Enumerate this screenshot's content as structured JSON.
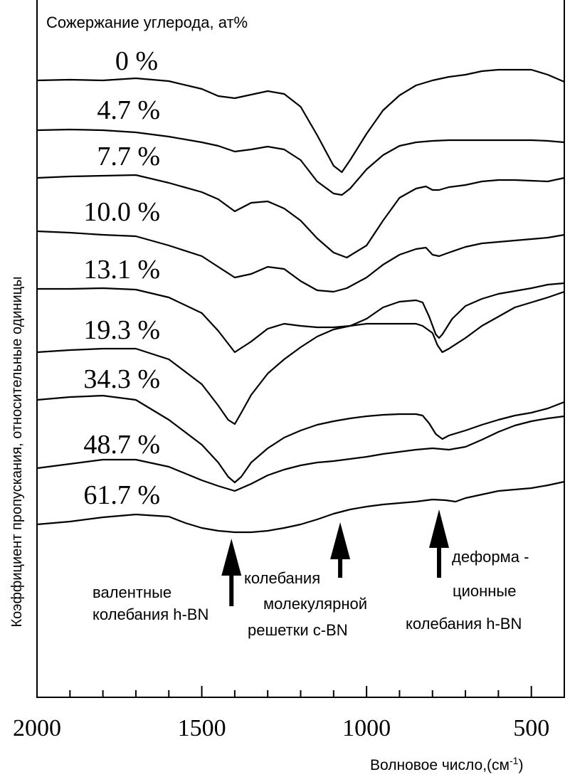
{
  "chart_data": {
    "type": "line",
    "title": "Сожержание углерода, ат%",
    "xlabel": "Волновое число,(см",
    "xlabel_sup": "-1",
    "xlabel_close": ")",
    "ylabel": "Коэффициент пропускания, относительные одиницы",
    "xlim": [
      2000,
      400
    ],
    "x_reversed": true,
    "xticks_major": [
      2000,
      1500,
      1000,
      500
    ],
    "xtick_labels": [
      "2000",
      "1500",
      "1000",
      "500"
    ],
    "xticks_minor_step": 100,
    "grid": false,
    "series": [
      {
        "name": "0 %",
        "points": [
          [
            2000,
            113
          ],
          [
            1900,
            112
          ],
          [
            1800,
            113
          ],
          [
            1700,
            110
          ],
          [
            1600,
            114
          ],
          [
            1500,
            125
          ],
          [
            1450,
            135
          ],
          [
            1400,
            138
          ],
          [
            1350,
            133
          ],
          [
            1300,
            128
          ],
          [
            1250,
            132
          ],
          [
            1200,
            150
          ],
          [
            1150,
            190
          ],
          [
            1100,
            233
          ],
          [
            1075,
            242
          ],
          [
            1050,
            225
          ],
          [
            1000,
            188
          ],
          [
            950,
            155
          ],
          [
            900,
            134
          ],
          [
            850,
            120
          ],
          [
            800,
            113
          ],
          [
            750,
            108
          ],
          [
            700,
            105
          ],
          [
            650,
            100
          ],
          [
            600,
            98
          ],
          [
            550,
            98
          ],
          [
            500,
            98
          ],
          [
            450,
            105
          ],
          [
            400,
            115
          ]
        ]
      },
      {
        "name": "4.7 %",
        "points": [
          [
            2000,
            183
          ],
          [
            1900,
            182
          ],
          [
            1800,
            183
          ],
          [
            1700,
            186
          ],
          [
            1600,
            192
          ],
          [
            1500,
            200
          ],
          [
            1450,
            205
          ],
          [
            1400,
            213
          ],
          [
            1350,
            210
          ],
          [
            1300,
            206
          ],
          [
            1250,
            210
          ],
          [
            1200,
            225
          ],
          [
            1150,
            255
          ],
          [
            1100,
            272
          ],
          [
            1075,
            274
          ],
          [
            1050,
            265
          ],
          [
            1000,
            238
          ],
          [
            950,
            218
          ],
          [
            900,
            205
          ],
          [
            850,
            200
          ],
          [
            800,
            198
          ],
          [
            750,
            197
          ],
          [
            700,
            197
          ],
          [
            650,
            197
          ],
          [
            600,
            197
          ],
          [
            550,
            197
          ],
          [
            500,
            197
          ],
          [
            450,
            198
          ],
          [
            400,
            200
          ]
        ]
      },
      {
        "name": "7.7 %",
        "points": [
          [
            2000,
            250
          ],
          [
            1900,
            248
          ],
          [
            1800,
            247
          ],
          [
            1700,
            246
          ],
          [
            1600,
            257
          ],
          [
            1500,
            270
          ],
          [
            1450,
            280
          ],
          [
            1400,
            297
          ],
          [
            1350,
            285
          ],
          [
            1300,
            283
          ],
          [
            1250,
            293
          ],
          [
            1200,
            310
          ],
          [
            1150,
            335
          ],
          [
            1100,
            355
          ],
          [
            1060,
            362
          ],
          [
            1000,
            345
          ],
          [
            950,
            310
          ],
          [
            900,
            278
          ],
          [
            850,
            265
          ],
          [
            820,
            262
          ],
          [
            800,
            267
          ],
          [
            780,
            267
          ],
          [
            750,
            263
          ],
          [
            700,
            260
          ],
          [
            650,
            255
          ],
          [
            600,
            253
          ],
          [
            550,
            253
          ],
          [
            500,
            254
          ],
          [
            450,
            255
          ],
          [
            400,
            250
          ]
        ]
      },
      {
        "name": "10.0 %",
        "points": [
          [
            2000,
            325
          ],
          [
            1900,
            327
          ],
          [
            1800,
            330
          ],
          [
            1700,
            332
          ],
          [
            1600,
            345
          ],
          [
            1500,
            360
          ],
          [
            1450,
            375
          ],
          [
            1400,
            390
          ],
          [
            1350,
            385
          ],
          [
            1300,
            375
          ],
          [
            1250,
            378
          ],
          [
            1200,
            395
          ],
          [
            1150,
            408
          ],
          [
            1100,
            410
          ],
          [
            1060,
            405
          ],
          [
            1000,
            390
          ],
          [
            950,
            372
          ],
          [
            900,
            358
          ],
          [
            850,
            350
          ],
          [
            820,
            348
          ],
          [
            800,
            358
          ],
          [
            780,
            360
          ],
          [
            750,
            355
          ],
          [
            700,
            347
          ],
          [
            650,
            342
          ],
          [
            600,
            340
          ],
          [
            550,
            338
          ],
          [
            500,
            336
          ],
          [
            450,
            334
          ],
          [
            400,
            330
          ]
        ]
      },
      {
        "name": "13.1 %",
        "points": [
          [
            2000,
            406
          ],
          [
            1900,
            406
          ],
          [
            1800,
            405
          ],
          [
            1700,
            407
          ],
          [
            1600,
            418
          ],
          [
            1500,
            440
          ],
          [
            1450,
            465
          ],
          [
            1400,
            495
          ],
          [
            1350,
            480
          ],
          [
            1300,
            462
          ],
          [
            1250,
            455
          ],
          [
            1200,
            458
          ],
          [
            1150,
            460
          ],
          [
            1100,
            460
          ],
          [
            1050,
            458
          ],
          [
            1000,
            448
          ],
          [
            950,
            432
          ],
          [
            900,
            424
          ],
          [
            850,
            422
          ],
          [
            830,
            425
          ],
          [
            810,
            445
          ],
          [
            790,
            470
          ],
          [
            780,
            475
          ],
          [
            770,
            470
          ],
          [
            740,
            448
          ],
          [
            700,
            430
          ],
          [
            650,
            420
          ],
          [
            600,
            413
          ],
          [
            550,
            409
          ],
          [
            500,
            405
          ],
          [
            450,
            400
          ],
          [
            400,
            398
          ]
        ]
      },
      {
        "name": "19.3 %",
        "points": [
          [
            2000,
            495
          ],
          [
            1900,
            492
          ],
          [
            1800,
            490
          ],
          [
            1700,
            490
          ],
          [
            1600,
            505
          ],
          [
            1500,
            540
          ],
          [
            1450,
            570
          ],
          [
            1420,
            590
          ],
          [
            1400,
            596
          ],
          [
            1380,
            580
          ],
          [
            1350,
            555
          ],
          [
            1300,
            525
          ],
          [
            1250,
            505
          ],
          [
            1200,
            488
          ],
          [
            1150,
            473
          ],
          [
            1100,
            463
          ],
          [
            1050,
            458
          ],
          [
            1000,
            455
          ],
          [
            950,
            455
          ],
          [
            900,
            455
          ],
          [
            850,
            455
          ],
          [
            830,
            458
          ],
          [
            800,
            468
          ],
          [
            785,
            485
          ],
          [
            770,
            495
          ],
          [
            750,
            490
          ],
          [
            700,
            475
          ],
          [
            650,
            458
          ],
          [
            600,
            445
          ],
          [
            550,
            432
          ],
          [
            500,
            425
          ],
          [
            450,
            418
          ],
          [
            400,
            410
          ]
        ]
      },
      {
        "name": "34.3 %",
        "points": [
          [
            2000,
            562
          ],
          [
            1900,
            558
          ],
          [
            1800,
            556
          ],
          [
            1700,
            562
          ],
          [
            1600,
            590
          ],
          [
            1500,
            625
          ],
          [
            1450,
            650
          ],
          [
            1420,
            670
          ],
          [
            1400,
            678
          ],
          [
            1380,
            670
          ],
          [
            1350,
            650
          ],
          [
            1300,
            630
          ],
          [
            1250,
            615
          ],
          [
            1200,
            605
          ],
          [
            1150,
            597
          ],
          [
            1100,
            592
          ],
          [
            1050,
            588
          ],
          [
            1000,
            585
          ],
          [
            950,
            583
          ],
          [
            900,
            582
          ],
          [
            850,
            582
          ],
          [
            830,
            584
          ],
          [
            810,
            595
          ],
          [
            790,
            610
          ],
          [
            770,
            617
          ],
          [
            750,
            612
          ],
          [
            700,
            605
          ],
          [
            650,
            597
          ],
          [
            600,
            590
          ],
          [
            550,
            584
          ],
          [
            500,
            580
          ],
          [
            450,
            574
          ],
          [
            400,
            565
          ]
        ]
      },
      {
        "name": "48.7 %",
        "points": [
          [
            2000,
            658
          ],
          [
            1900,
            652
          ],
          [
            1800,
            646
          ],
          [
            1700,
            646
          ],
          [
            1600,
            656
          ],
          [
            1500,
            675
          ],
          [
            1450,
            683
          ],
          [
            1400,
            690
          ],
          [
            1350,
            680
          ],
          [
            1300,
            668
          ],
          [
            1250,
            660
          ],
          [
            1200,
            654
          ],
          [
            1150,
            650
          ],
          [
            1100,
            648
          ],
          [
            1050,
            645
          ],
          [
            1000,
            642
          ],
          [
            950,
            638
          ],
          [
            900,
            635
          ],
          [
            850,
            632
          ],
          [
            800,
            630
          ],
          [
            750,
            632
          ],
          [
            700,
            628
          ],
          [
            650,
            618
          ],
          [
            600,
            607
          ],
          [
            550,
            598
          ],
          [
            500,
            592
          ],
          [
            450,
            588
          ],
          [
            400,
            585
          ]
        ]
      },
      {
        "name": "61.7 %",
        "points": [
          [
            2000,
            737
          ],
          [
            1900,
            733
          ],
          [
            1800,
            727
          ],
          [
            1700,
            723
          ],
          [
            1600,
            726
          ],
          [
            1550,
            735
          ],
          [
            1500,
            742
          ],
          [
            1450,
            746
          ],
          [
            1400,
            748
          ],
          [
            1350,
            748
          ],
          [
            1300,
            746
          ],
          [
            1250,
            742
          ],
          [
            1200,
            737
          ],
          [
            1150,
            730
          ],
          [
            1100,
            722
          ],
          [
            1050,
            716
          ],
          [
            1000,
            712
          ],
          [
            950,
            709
          ],
          [
            900,
            707
          ],
          [
            850,
            705
          ],
          [
            800,
            702
          ],
          [
            760,
            703
          ],
          [
            730,
            705
          ],
          [
            700,
            700
          ],
          [
            650,
            695
          ],
          [
            600,
            690
          ],
          [
            550,
            688
          ],
          [
            500,
            686
          ],
          [
            450,
            682
          ],
          [
            400,
            677
          ]
        ]
      }
    ],
    "series_labels": [
      "0 %",
      "4.7 %",
      "7.7 %",
      "10.0 %",
      "13.1 %",
      "19.3 %",
      "34.3 %",
      "48.7 %",
      "61.7 %"
    ],
    "annotations": [
      {
        "x": 1410,
        "lines": [
          "валентные",
          "колебания h-BN"
        ]
      },
      {
        "x": 1080,
        "lines": [
          "колебания",
          "молекулярной",
          "решетки c-BN"
        ]
      },
      {
        "x": 780,
        "lines": [
          "деформа -",
          "ционные",
          "колебания h-BN"
        ]
      }
    ]
  }
}
